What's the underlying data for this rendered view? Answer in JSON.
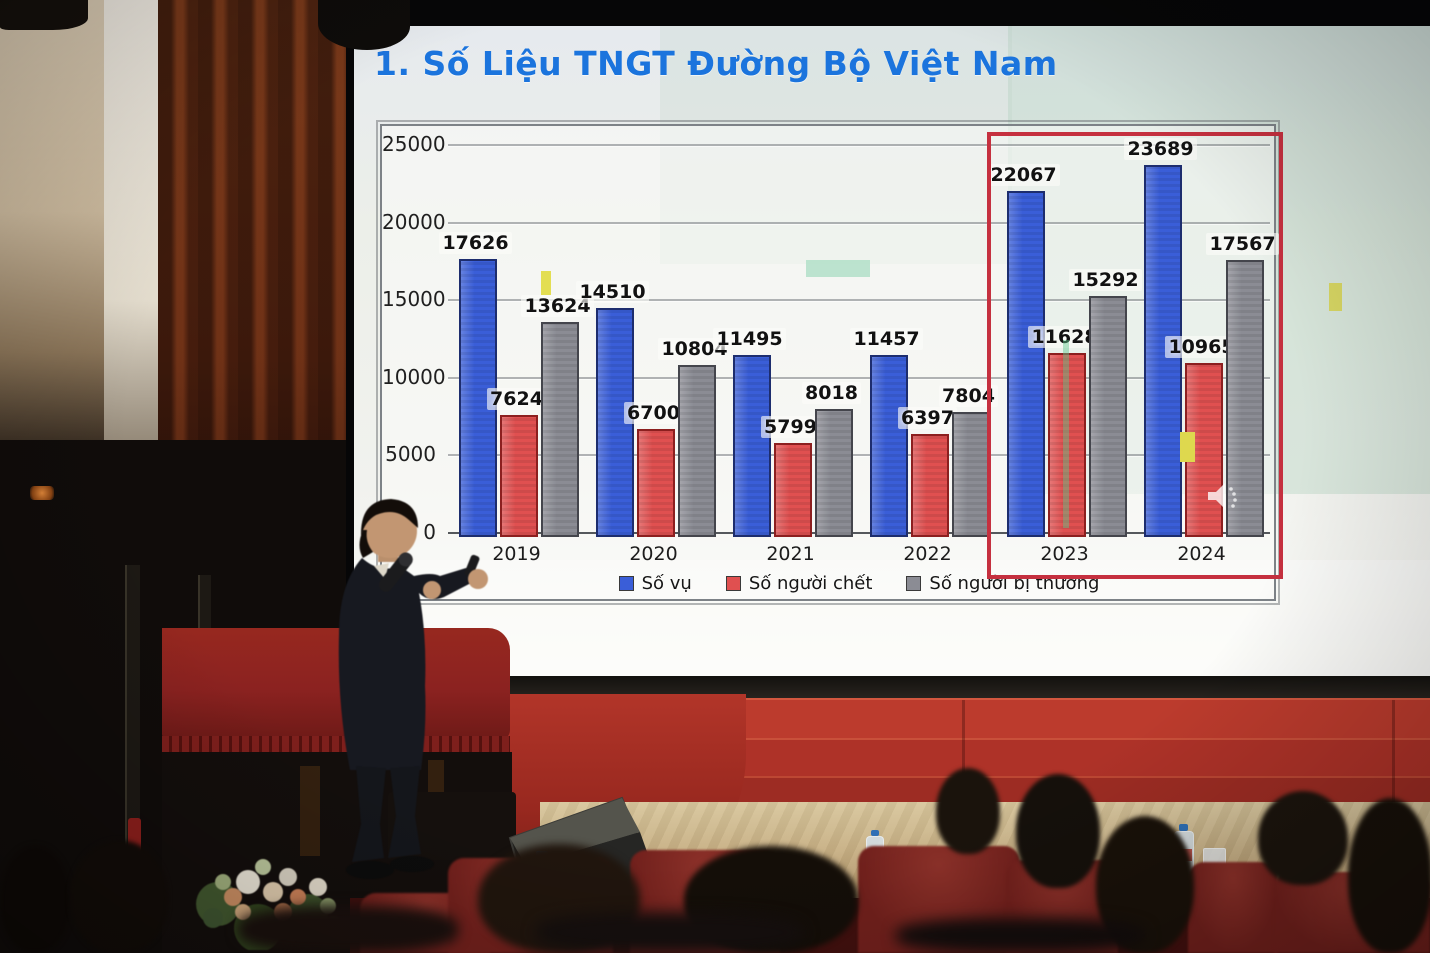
{
  "slide": {
    "title": "1. Số Liệu TNGT Đường Bộ Việt Nam",
    "title_color": "#1b74dd"
  },
  "chart_data": {
    "type": "bar",
    "title": "",
    "xlabel": "",
    "ylabel": "",
    "categories": [
      "2019",
      "2020",
      "2021",
      "2022",
      "2023",
      "2024"
    ],
    "series": [
      {
        "name": "Số vụ",
        "color": "#3a5ed8",
        "border": "#1d2d6e",
        "values": [
          17626,
          14510,
          11495,
          11457,
          22067,
          23689
        ]
      },
      {
        "name": "Số người chết",
        "color": "#e05050",
        "border": "#8c1f1f",
        "values": [
          7624,
          6700,
          5799,
          6397,
          11628,
          10965
        ]
      },
      {
        "name": "Số người bị thương",
        "color": "#8b8c94",
        "border": "#44454c",
        "values": [
          13624,
          10804,
          8018,
          7804,
          15292,
          17567
        ]
      }
    ],
    "ylim": [
      0,
      25000
    ],
    "yticks": [
      0,
      5000,
      10000,
      15000,
      20000,
      25000
    ],
    "grid": true,
    "legend_position": "bottom",
    "highlight": {
      "from": "2023",
      "to": "2024",
      "border_color": "#c5303f"
    }
  },
  "colors": {
    "bar_blue": "#3a5ed8",
    "bar_red": "#e05050",
    "bar_gray": "#8b8c94",
    "highlight_red": "#c5303f",
    "title_blue": "#1b74dd",
    "stage_step_red": "#ae3228",
    "curtain_red": "#5f2712",
    "chair_maroon": "#71201c"
  }
}
